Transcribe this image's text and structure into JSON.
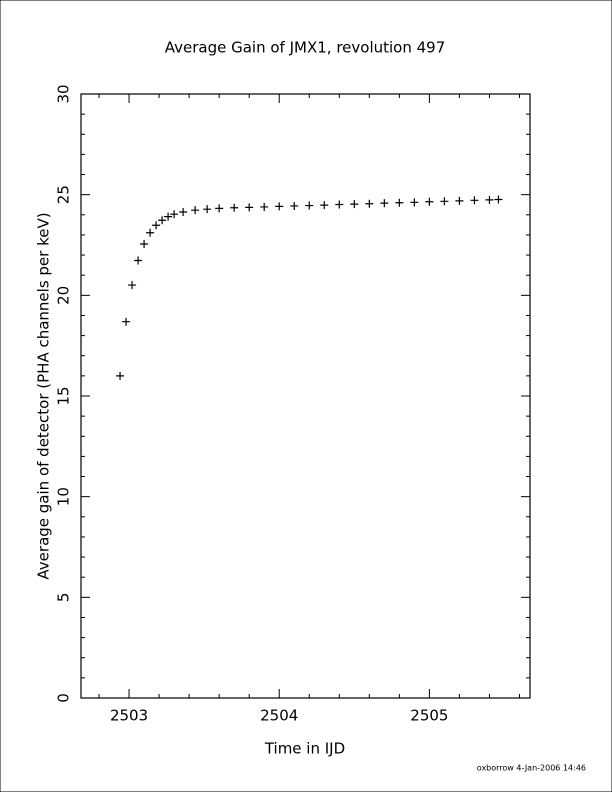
{
  "chart_data": {
    "type": "scatter",
    "title": "Average Gain of JMX1, revolution 497",
    "xlabel": "Time in IJD",
    "ylabel": "Average gain of detector (PHA channels per keV)",
    "footer": "oxborrow   4-Jan-2006 14:46",
    "color": "#000000",
    "marker": "plus",
    "x": [
      2502.94,
      2502.98,
      2503.02,
      2503.06,
      2503.1,
      2503.14,
      2503.18,
      2503.22,
      2503.26,
      2503.3,
      2503.36,
      2503.44,
      2503.52,
      2503.6,
      2503.7,
      2503.8,
      2503.9,
      2504.0,
      2504.1,
      2504.2,
      2504.3,
      2504.4,
      2504.5,
      2504.6,
      2504.7,
      2504.8,
      2504.9,
      2505.0,
      2505.1,
      2505.2,
      2505.3,
      2505.4,
      2505.46
    ],
    "values": [
      16.0,
      18.69,
      20.51,
      21.73,
      22.55,
      23.11,
      23.48,
      23.73,
      23.91,
      24.03,
      24.14,
      24.23,
      24.28,
      24.32,
      24.35,
      24.37,
      24.39,
      24.42,
      24.44,
      24.46,
      24.48,
      24.51,
      24.53,
      24.55,
      24.58,
      24.6,
      24.62,
      24.65,
      24.67,
      24.69,
      24.72,
      24.74,
      24.76
    ],
    "xlim": [
      2502.68,
      2505.67
    ],
    "ylim": [
      0,
      30
    ],
    "xticks": [
      2503,
      2504,
      2505
    ],
    "yticks": [
      0,
      5,
      10,
      15,
      20,
      25,
      30
    ],
    "xminorticks": [
      2502.8,
      2503.2,
      2503.4,
      2503.6,
      2503.8,
      2504.2,
      2504.4,
      2504.6,
      2504.8,
      2505.2,
      2505.4,
      2505.6
    ],
    "yminorticks": [
      1,
      2,
      3,
      4,
      6,
      7,
      8,
      9,
      11,
      12,
      13,
      14,
      16,
      17,
      18,
      19,
      21,
      22,
      23,
      24,
      26,
      27,
      28,
      29
    ]
  }
}
